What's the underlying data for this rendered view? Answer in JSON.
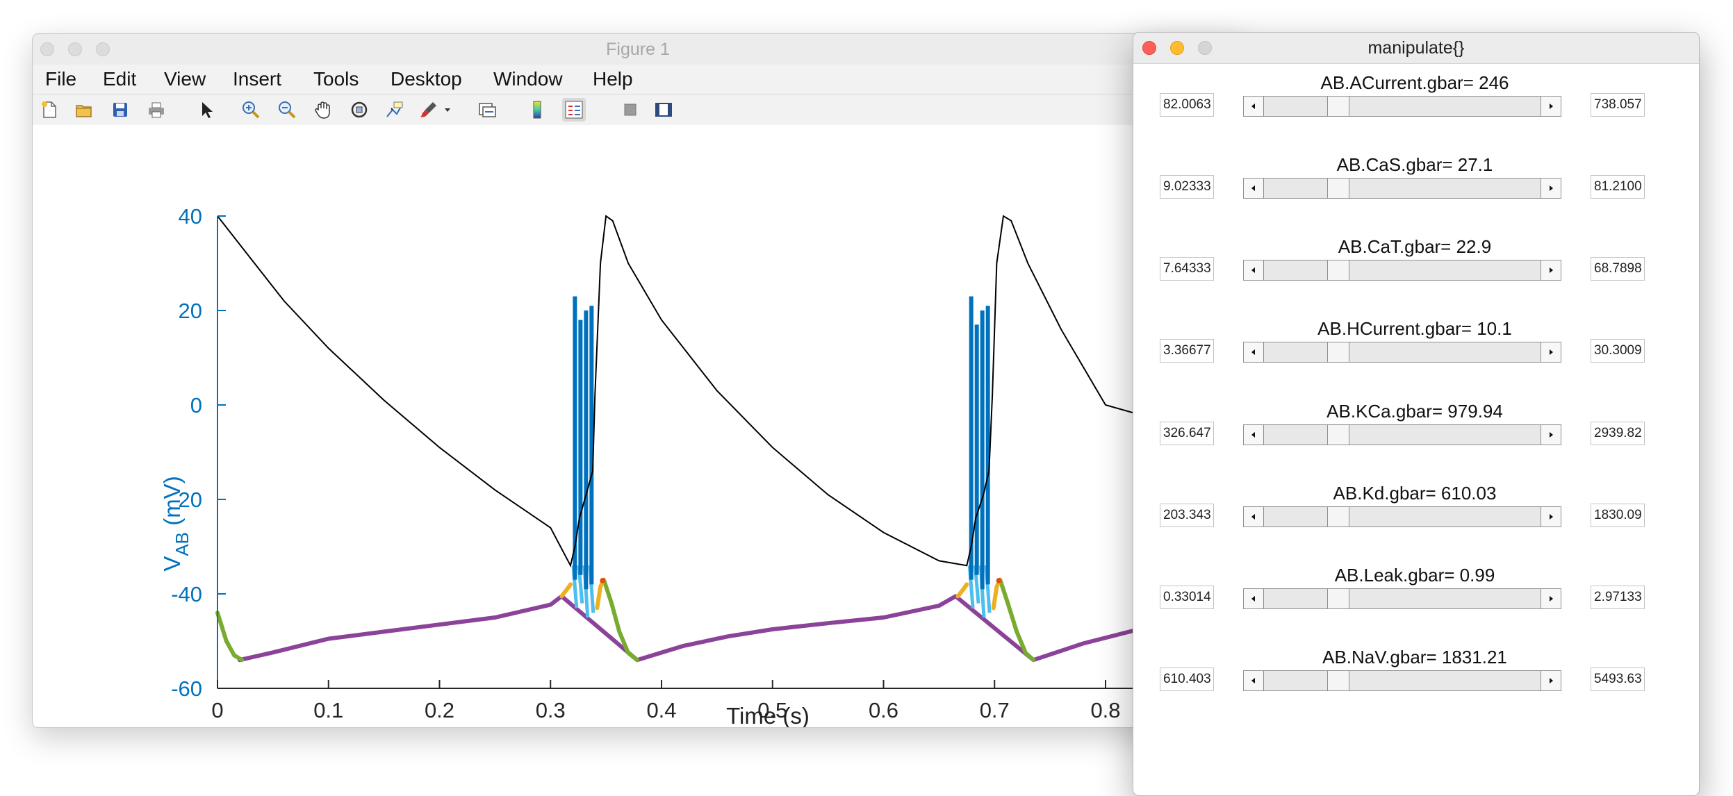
{
  "figure_window": {
    "title": "Figure 1",
    "menu": [
      "File",
      "Edit",
      "View",
      "Insert",
      "Tools",
      "Desktop",
      "Window",
      "Help"
    ],
    "toolbar_icons": [
      "new-figure-icon",
      "open-file-icon",
      "save-icon",
      "print-icon",
      "pointer-icon",
      "zoom-in-icon",
      "zoom-out-icon",
      "pan-icon",
      "rotate-icon",
      "data-cursor-icon",
      "brush-icon",
      "brush-dropdown-icon",
      "link-plot-icon",
      "colorbar-icon",
      "legend-icon",
      "hide-plot-tools-icon",
      "show-plot-tools-icon"
    ]
  },
  "chart_data": {
    "type": "line",
    "xlabel": "Time (s)",
    "ylabel": "V",
    "ylabel_subscript": "AB",
    "ylabel_unit": " (mV)",
    "xlim": [
      0,
      0.83
    ],
    "ylim": [
      -60,
      40
    ],
    "x_ticks": [
      "0",
      "0.1",
      "0.2",
      "0.3",
      "0.4",
      "0.5",
      "0.6",
      "0.7",
      "0.8"
    ],
    "y_ticks": [
      "40",
      "20",
      "0",
      "-20",
      "-40",
      "-60"
    ],
    "axis_color": "#0072bd",
    "series": [
      {
        "color": "#000000",
        "description_visible": "thin black trace",
        "x": [
          0,
          0.03,
          0.06,
          0.1,
          0.15,
          0.2,
          0.25,
          0.3,
          0.318,
          0.322,
          0.326,
          0.332,
          0.338,
          0.34,
          0.345,
          0.35,
          0.356,
          0.37,
          0.4,
          0.45,
          0.5,
          0.55,
          0.6,
          0.65,
          0.675,
          0.679,
          0.683,
          0.69,
          0.695,
          0.698,
          0.702,
          0.708,
          0.715,
          0.73,
          0.76,
          0.8,
          0.83
        ],
        "y": [
          40,
          31,
          22,
          12,
          1,
          -9,
          -18,
          -26,
          -34,
          -30,
          -24,
          -19,
          -14,
          2,
          30,
          40,
          39,
          30,
          18,
          3,
          -9,
          -19,
          -27,
          -33,
          -34,
          -30,
          -24,
          -19,
          -14,
          2,
          30,
          40,
          39,
          30,
          16,
          0,
          -2
        ]
      },
      {
        "color": "#0072bd",
        "description_visible": "spikes",
        "spike_x": [
          0.322,
          0.327,
          0.332,
          0.337,
          0.679,
          0.684,
          0.689,
          0.694
        ],
        "spike_top": [
          23,
          18,
          20,
          21,
          23,
          17,
          20,
          21
        ],
        "spike_bottom": [
          -37,
          -36,
          -39,
          -38,
          -37,
          -36,
          -39,
          -38
        ]
      },
      {
        "color": "#7e2f8e",
        "description_visible": "purple membrane trace",
        "x": [
          0.02,
          0.05,
          0.1,
          0.15,
          0.2,
          0.25,
          0.3,
          0.31,
          0.378,
          0.42,
          0.46,
          0.5,
          0.55,
          0.6,
          0.65,
          0.665,
          0.735,
          0.78,
          0.83
        ],
        "y": [
          -54,
          -52.4,
          -49.5,
          -48,
          -46.5,
          -45,
          -42.3,
          -40.5,
          -54,
          -51,
          -49,
          -47.5,
          -46.2,
          -45,
          -42.5,
          -40.5,
          -54,
          -50.5,
          -47.5
        ]
      },
      {
        "color": "#77ac30",
        "x_segments": [
          [
            0,
            0.008,
            0.015,
            0.022
          ],
          [
            0.348,
            0.355,
            0.362,
            0.37,
            0.378
          ],
          [
            0.705,
            0.712,
            0.72,
            0.728,
            0.735
          ]
        ],
        "y_segments": [
          [
            -44,
            -50,
            -53,
            -54
          ],
          [
            -37,
            -42,
            -48,
            -52.5,
            -54
          ],
          [
            -37,
            -42,
            -48,
            -52.5,
            -54
          ]
        ]
      },
      {
        "color": "#edb120",
        "x_segments": [
          [
            0.31,
            0.315,
            0.318
          ],
          [
            0.342,
            0.345,
            0.348
          ],
          [
            0.667,
            0.672,
            0.675
          ],
          [
            0.699,
            0.702,
            0.705
          ]
        ],
        "y_segments": [
          [
            -40.5,
            -39,
            -38
          ],
          [
            -43,
            -38.5,
            -37
          ],
          [
            -40.5,
            -39,
            -38
          ],
          [
            -43,
            -38.5,
            -37
          ]
        ]
      },
      {
        "color": "#d95319",
        "x": [
          0.347,
          0.704
        ],
        "y": [
          -37.2,
          -37.2
        ]
      }
    ]
  },
  "manipulate_window": {
    "title": "manipulate{}",
    "sliders": [
      {
        "label": "AB.ACurrent.gbar= 246",
        "min": "82.0063",
        "max": "738.057",
        "position": 0.25
      },
      {
        "label": "AB.CaS.gbar= 27.1",
        "min": "9.02333",
        "max": "81.2100",
        "position": 0.25
      },
      {
        "label": "AB.CaT.gbar= 22.9",
        "min": "7.64333",
        "max": "68.7898",
        "position": 0.25
      },
      {
        "label": "AB.HCurrent.gbar= 10.1",
        "min": "3.36677",
        "max": "30.3009",
        "position": 0.25
      },
      {
        "label": "AB.KCa.gbar= 979.94",
        "min": "326.647",
        "max": "2939.82",
        "position": 0.25
      },
      {
        "label": "AB.Kd.gbar= 610.03",
        "min": "203.343",
        "max": "1830.09",
        "position": 0.25
      },
      {
        "label": "AB.Leak.gbar= 0.99",
        "min": "0.33014",
        "max": "2.97133",
        "position": 0.25
      },
      {
        "label": "AB.NaV.gbar= 1831.21",
        "min": "610.403",
        "max": "5493.63",
        "position": 0.25
      }
    ]
  }
}
